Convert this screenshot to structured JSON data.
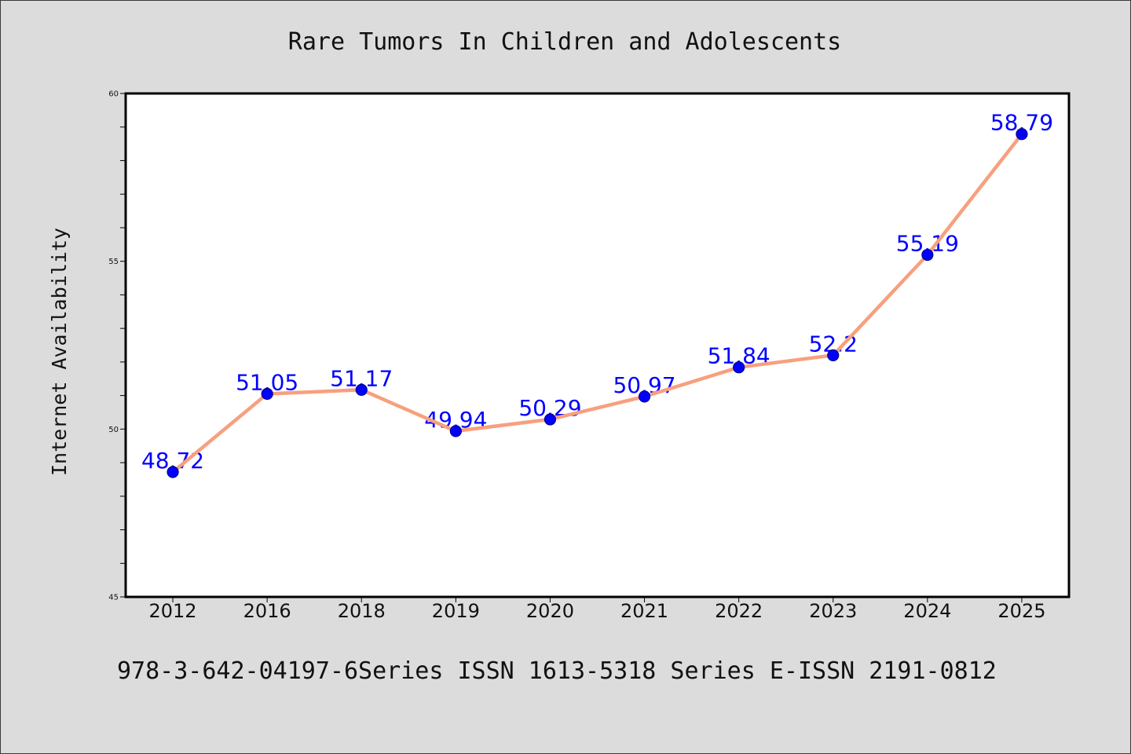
{
  "chart_data": {
    "type": "line",
    "title": "Rare Tumors In Children and Adolescents",
    "xlabel": "",
    "ylabel": "Internet Availability",
    "categories": [
      "2012",
      "2016",
      "2018",
      "2019",
      "2020",
      "2021",
      "2022",
      "2023",
      "2024",
      "2025"
    ],
    "values": [
      48.72,
      51.05,
      51.17,
      49.94,
      50.29,
      50.97,
      51.84,
      52.2,
      55.19,
      58.79
    ],
    "ylim": [
      45,
      60
    ],
    "yticks": [
      45,
      50,
      55,
      60
    ],
    "grid": false,
    "legend": "none",
    "data_labels": true,
    "colors": {
      "background": "#dcdcdc",
      "plot_background": "#ffffff",
      "line": "#f7a07e",
      "marker": "#0000ff",
      "marker_edge": "#00008b",
      "data_label": "#0000ff"
    }
  },
  "footer": {
    "text": "978-3-642-04197-6Series ISSN 1613-5318 Series E-ISSN 2191-0812"
  }
}
